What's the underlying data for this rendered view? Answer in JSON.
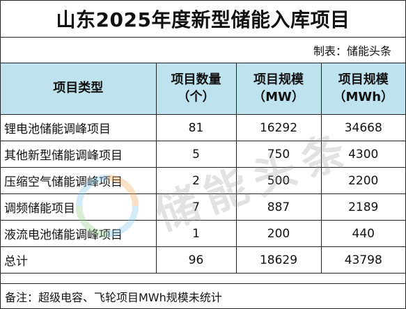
{
  "title": "山东2025年度新型储能入库项目",
  "maker": "制表：储能头条",
  "headers": [
    "项目类型",
    "项目数量\n（个）",
    "项目规模\n（MW）",
    "项目规模\n（MWh）"
  ],
  "rows": [
    {
      "type": "锂电池储能调峰项目",
      "count": "81",
      "mw": "16292",
      "mwh": "34668"
    },
    {
      "type": "其他新型储能调峰项目",
      "count": "5",
      "mw": "750",
      "mwh": "4300"
    },
    {
      "type": "压缩空气储能调峰项目",
      "count": "2",
      "mw": "500",
      "mwh": "2200"
    },
    {
      "type": "调频储能项目",
      "count": "7",
      "mw": "887",
      "mwh": "2189"
    },
    {
      "type": "液流电池储能调峰项目",
      "count": "1",
      "mw": "200",
      "mwh": "440"
    }
  ],
  "total": {
    "type": "总计",
    "count": "96",
    "mw": "18629",
    "mwh": "43798"
  },
  "note": "备注：超级电容、飞轮项目MWh规模未统计",
  "watermark": "储能头条",
  "colors": {
    "header_bg": "#bfe3ee"
  }
}
